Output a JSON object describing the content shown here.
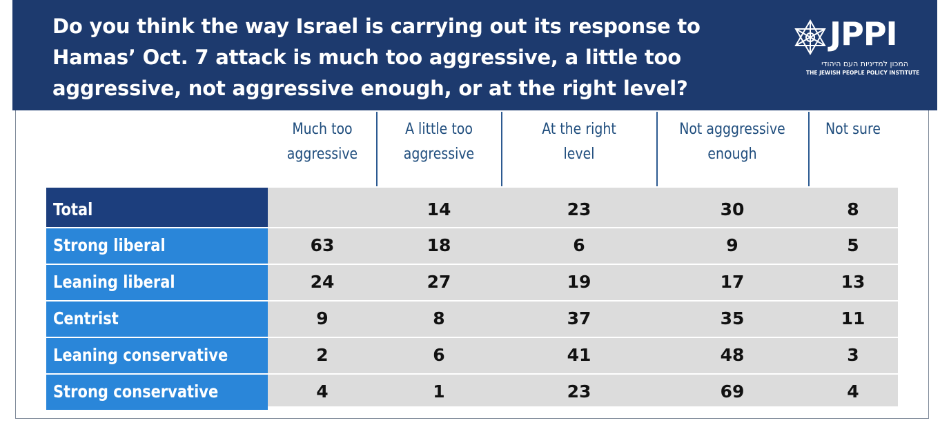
{
  "title": "Do you think the way Israel is carrying out its response to Hamas’ Oct. 7 attack is much too aggressive, a little too aggressive, not aggressive enough, or at the right level?",
  "logo": {
    "name": "JPPI",
    "hebrew": "המכון למדיניות העם היהודי",
    "subtitle": "THE JEWISH PEOPLE POLICY INSTITUTE"
  },
  "colors": {
    "header": "#1d3a6e",
    "total_label": "#1c3e7d",
    "row_label": "#2a86d9",
    "cell_bg": "#dcdcdc",
    "col_header_text": "#1f4d7d"
  },
  "chart_data": {
    "type": "table",
    "title": "Do you think the way Israel is carrying out its response to Hamas’ Oct. 7 attack is much too aggressive, a little too aggressive, not aggressive enough, or at the right level?",
    "columns": [
      [
        "Much too",
        "aggressive"
      ],
      [
        "A little too",
        "aggressive"
      ],
      [
        "At the right",
        "level"
      ],
      [
        "Not agggressive",
        "enough"
      ],
      [
        "Not sure"
      ]
    ],
    "rows": [
      {
        "label": "Total",
        "values": [
          "",
          "14",
          "23",
          "30",
          "8"
        ]
      },
      {
        "label": "Strong liberal",
        "values": [
          "63",
          "18",
          "6",
          "9",
          "5"
        ]
      },
      {
        "label": "Leaning liberal",
        "values": [
          "24",
          "27",
          "19",
          "17",
          "13"
        ]
      },
      {
        "label": "Centrist",
        "values": [
          "9",
          "8",
          "37",
          "35",
          "11"
        ]
      },
      {
        "label": "Leaning conservative",
        "values": [
          "2",
          "6",
          "41",
          "48",
          "3"
        ]
      },
      {
        "label": "Strong conservative",
        "values": [
          "4",
          "1",
          "23",
          "69",
          "4"
        ]
      }
    ]
  }
}
